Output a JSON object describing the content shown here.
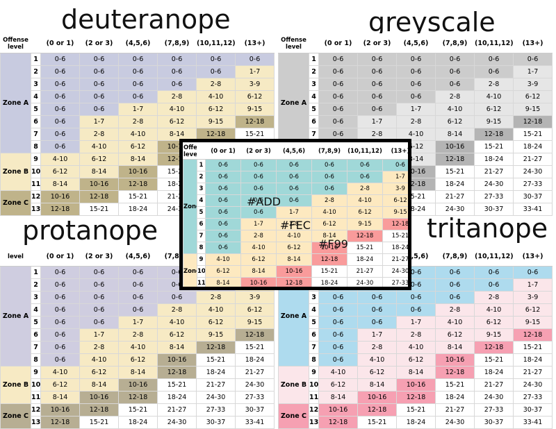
{
  "titles": {
    "deuteranope": "deuteranope",
    "greyscale": "greyscale",
    "protanope": "protanope",
    "tritanope": "tritanope"
  },
  "headers": [
    "Offense level",
    "(0 or 1)",
    "(2 or 3)",
    "(4,5,6)",
    "(7,8,9)",
    "(10,11,12)",
    "(13+)"
  ],
  "header_short": "level",
  "zone_labels": [
    "Zone A",
    "Zone B",
    "Zone C"
  ],
  "rows": [
    {
      "level": "1",
      "zone": 0,
      "cells": [
        "0-6",
        "0-6",
        "0-6",
        "0-6",
        "0-6",
        "0-6"
      ],
      "z": [
        "A",
        "A",
        "A",
        "A",
        "A",
        "A"
      ]
    },
    {
      "level": "2",
      "zone": 0,
      "cells": [
        "0-6",
        "0-6",
        "0-6",
        "0-6",
        "0-6",
        "1-7"
      ],
      "z": [
        "A",
        "A",
        "A",
        "A",
        "A",
        "B"
      ]
    },
    {
      "level": "3",
      "zone": 0,
      "cells": [
        "0-6",
        "0-6",
        "0-6",
        "0-6",
        "2-8",
        "3-9"
      ],
      "z": [
        "A",
        "A",
        "A",
        "A",
        "B",
        "B"
      ]
    },
    {
      "level": "4",
      "zone": 0,
      "cells": [
        "0-6",
        "0-6",
        "0-6",
        "2-8",
        "4-10",
        "6-12"
      ],
      "z": [
        "A",
        "A",
        "A",
        "B",
        "B",
        "B"
      ]
    },
    {
      "level": "5",
      "zone": 0,
      "cells": [
        "0-6",
        "0-6",
        "1-7",
        "4-10",
        "6-12",
        "9-15"
      ],
      "z": [
        "A",
        "A",
        "B",
        "B",
        "B",
        "B"
      ]
    },
    {
      "level": "6",
      "zone": 0,
      "cells": [
        "0-6",
        "1-7",
        "2-8",
        "6-12",
        "9-15",
        "12-18"
      ],
      "z": [
        "A",
        "B",
        "B",
        "B",
        "B",
        "C"
      ]
    },
    {
      "level": "7",
      "zone": 0,
      "cells": [
        "0-6",
        "2-8",
        "4-10",
        "8-14",
        "12-18",
        "15-21"
      ],
      "z": [
        "A",
        "B",
        "B",
        "B",
        "C",
        "D"
      ]
    },
    {
      "level": "8",
      "zone": 0,
      "cells": [
        "0-6",
        "4-10",
        "6-12",
        "10-16",
        "15-21",
        "18-24"
      ],
      "z": [
        "A",
        "B",
        "B",
        "C",
        "D",
        "D"
      ]
    },
    {
      "level": "9",
      "zone": 1,
      "cells": [
        "4-10",
        "6-12",
        "8-14",
        "12-18",
        "18-24",
        "21-27"
      ],
      "z": [
        "B",
        "B",
        "B",
        "C",
        "D",
        "D"
      ]
    },
    {
      "level": "10",
      "zone": 1,
      "cells": [
        "6-12",
        "8-14",
        "10-16",
        "15-21",
        "21-27",
        "24-30"
      ],
      "z": [
        "B",
        "B",
        "C",
        "D",
        "D",
        "D"
      ]
    },
    {
      "level": "11",
      "zone": 1,
      "cells": [
        "8-14",
        "10-16",
        "12-18",
        "18-24",
        "24-30",
        "27-33"
      ],
      "z": [
        "B",
        "C",
        "C",
        "D",
        "D",
        "D"
      ]
    },
    {
      "level": "12",
      "zone": 2,
      "cells": [
        "10-16",
        "12-18",
        "15-21",
        "21-27",
        "27-33",
        "30-37"
      ],
      "z": [
        "C",
        "C",
        "D",
        "D",
        "D",
        "D"
      ]
    },
    {
      "level": "13",
      "zone": 2,
      "cells": [
        "12-18",
        "15-21",
        "18-24",
        "24-30",
        "30-37",
        "33-41"
      ],
      "z": [
        "C",
        "D",
        "D",
        "D",
        "D",
        "D"
      ]
    }
  ],
  "palettes": {
    "deuteranope": {
      "A": "#c8cbe0",
      "B": "#f6eac4",
      "C": "#bfb38a",
      "D": "#ffffff",
      "zoneA": "#c8cbe0",
      "zoneB": "#f6eac4",
      "zoneC": "#bfb38a"
    },
    "greyscale": {
      "A": "#cccccc",
      "B": "#e6e6e6",
      "C": "#b4b4b4",
      "D": "#ffffff",
      "zoneA": "#cccccc",
      "zoneB": "#e6e6e6",
      "zoneC": "#b4b4b4"
    },
    "protanope": {
      "A": "#cfcde0",
      "B": "#f7eac4",
      "C": "#b7ae93",
      "D": "#ffffff",
      "zoneA": "#cfcde0",
      "zoneB": "#f7eac4",
      "zoneC": "#b7ae93"
    },
    "tritanope": {
      "A": "#aedbee",
      "B": "#fbe6ea",
      "C": "#f6a0b2",
      "D": "#ffffff",
      "zoneA": "#aedbee",
      "zoneB": "#fbe6ea",
      "zoneC": "#f6a0b2"
    },
    "original": {
      "A": "#a0d8d8",
      "B": "#fde9c0",
      "C": "#f99b9b",
      "D": "#ffffff",
      "zoneA": "#a0d8d8",
      "zoneB": "#fde9c0",
      "zoneC": "#f99b9b"
    }
  },
  "hex_labels": [
    "#ADD",
    "#FEC",
    "#F99"
  ]
}
